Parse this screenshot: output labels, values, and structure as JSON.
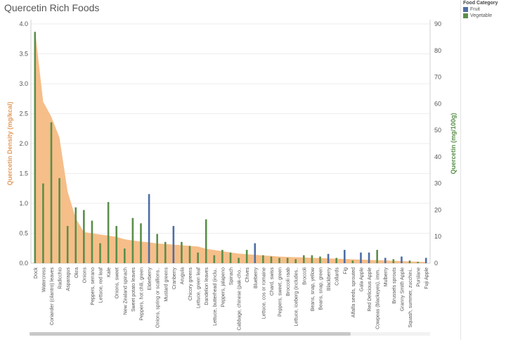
{
  "title": "Quercetin Rich Foods",
  "legend": {
    "title": "Food Category",
    "items": [
      {
        "label": "Fruit",
        "color": "#4e6ea5"
      },
      {
        "label": "Vegetable",
        "color": "#5a8f4a"
      }
    ]
  },
  "chart_data": {
    "type": "bar",
    "title": "Quercetin Rich Foods",
    "ylabel_left": "Quercetin Density (mg/kcal)",
    "ylabel_right": "Quercetin (mg/100g)",
    "ylim_left": [
      0,
      4.0
    ],
    "ylim_right": [
      0,
      90
    ],
    "yticks_left": [
      "0.0",
      "0.5",
      "1.0",
      "1.5",
      "2.0",
      "2.5",
      "3.0",
      "3.5",
      "4.0"
    ],
    "yticks_right": [
      "0",
      "10",
      "20",
      "30",
      "40",
      "50",
      "60",
      "70",
      "80",
      "90"
    ],
    "area_color": "#f5b77c",
    "categories": [
      "Dock",
      "Watercress",
      "Coriander (cilantro) leaves",
      "Radicchio",
      "Asparagus",
      "Okra",
      "Onions",
      "Peppers, serrano",
      "Lettuce, red leaf",
      "Kale",
      "Onions, sweet",
      "New Zealand spinach",
      "Sweet potato leaves",
      "Peppers, hot chili, green",
      "Elderberry",
      "Onions, spring or scallions..",
      "Mustard greens",
      "Cranberry",
      "Arugula",
      "Chicory greens",
      "Lettuce, green leaf",
      "Dandelion leaves",
      "Lettuce, butterhead (inclu..",
      "Peppers, jalapeno",
      "Spinach",
      "Cabbage, chinese (pak-cho..",
      "Chives",
      "Blueberry",
      "Lettuce, cos or romaine",
      "Chard, swiss",
      "Peppers, sweet, green",
      "Broccoli raab",
      "Lettuce, iceberg (includes..",
      "Broccoli",
      "Beans, snap, yellow",
      "Beans, snap, green",
      "Blackberry",
      "Collards",
      "Fig",
      "Alfalfa seeds, sprouted",
      "Gala Apple",
      "Red Delicious Apple",
      "Cowpeas (blackeyes), imm..",
      "Mulberry",
      "Brussels sprouts",
      "Granny Smith Apple",
      "Squash, summer, zucchini..",
      "Purslane",
      "Fuji Apple"
    ],
    "density": [
      3.9,
      2.7,
      2.45,
      2.1,
      1.2,
      0.75,
      0.52,
      0.5,
      0.48,
      0.46,
      0.44,
      0.4,
      0.38,
      0.36,
      0.35,
      0.33,
      0.32,
      0.31,
      0.3,
      0.29,
      0.28,
      0.24,
      0.22,
      0.2,
      0.18,
      0.16,
      0.15,
      0.14,
      0.13,
      0.12,
      0.11,
      0.105,
      0.1,
      0.095,
      0.09,
      0.085,
      0.08,
      0.075,
      0.07,
      0.065,
      0.06,
      0.055,
      0.05,
      0.045,
      0.04,
      0.035,
      0.03,
      0.025,
      0.02
    ],
    "quercetin_mg": [
      87,
      30,
      53,
      32,
      14,
      21,
      20,
      16,
      7.5,
      23,
      14,
      5.5,
      17,
      15,
      26,
      11,
      8,
      14,
      8,
      6.5,
      4,
      16.5,
      3,
      5,
      4,
      2,
      5,
      7.5,
      3,
      2.5,
      2,
      2,
      1.5,
      3,
      3,
      2.5,
      3.5,
      2,
      5,
      1,
      4,
      4,
      5,
      2,
      1.5,
      2.5,
      1,
      0.5,
      2
    ],
    "category": [
      "Vegetable",
      "Vegetable",
      "Vegetable",
      "Vegetable",
      "Vegetable",
      "Vegetable",
      "Vegetable",
      "Vegetable",
      "Vegetable",
      "Vegetable",
      "Vegetable",
      "Vegetable",
      "Vegetable",
      "Vegetable",
      "Fruit",
      "Vegetable",
      "Vegetable",
      "Fruit",
      "Vegetable",
      "Vegetable",
      "Vegetable",
      "Vegetable",
      "Vegetable",
      "Vegetable",
      "Vegetable",
      "Vegetable",
      "Vegetable",
      "Fruit",
      "Vegetable",
      "Vegetable",
      "Vegetable",
      "Vegetable",
      "Vegetable",
      "Vegetable",
      "Vegetable",
      "Vegetable",
      "Fruit",
      "Vegetable",
      "Fruit",
      "Vegetable",
      "Fruit",
      "Fruit",
      "Vegetable",
      "Fruit",
      "Vegetable",
      "Fruit",
      "Vegetable",
      "Vegetable",
      "Fruit"
    ]
  }
}
